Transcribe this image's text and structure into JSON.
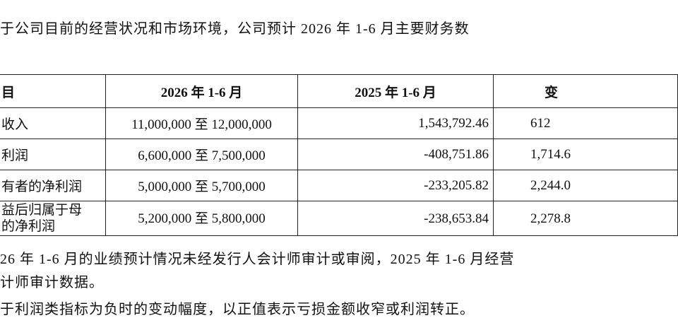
{
  "intro": "于公司目前的经营状况和市场环境，公司预计 2026 年 1-6 月主要财务数",
  "table": {
    "header": [
      "目",
      "2026 年 1-6 月",
      "2025 年 1-6 月",
      "变"
    ],
    "rows": [
      [
        "收入",
        "11,000,000 至 12,000,000",
        "1,543,792.46",
        "612"
      ],
      [
        "利润",
        "6,600,000 至 7,500,000",
        "-408,751.86",
        "1,714.6"
      ],
      [
        "有者的净利润",
        "5,000,000 至 5,700,000",
        "-233,205.82",
        "2,244.0"
      ],
      [
        [
          "益后归属于母",
          "的净利润"
        ],
        "5,200,000 至 5,800,000",
        "-238,653.84",
        "2,278.8"
      ]
    ]
  },
  "notes": [
    "26 年 1-6 月的业绩预计情况未经发行人会计师审计或审阅，2025 年 1-6 月经营",
    "计师审计数据。",
    "于利润类指标为负时的变动幅度，以正值表示亏损金额收窄或利润转正。"
  ]
}
